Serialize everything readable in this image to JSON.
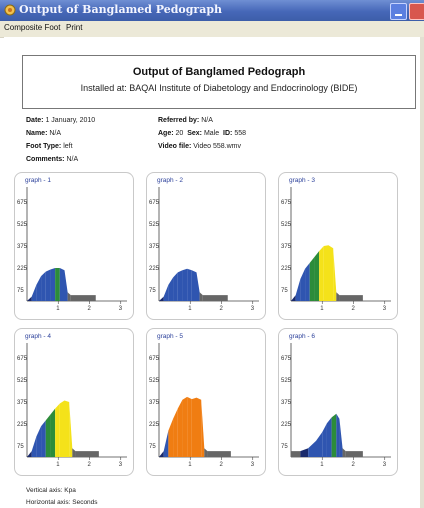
{
  "window": {
    "title": "Output of Banglamed Pedograph"
  },
  "menu": {
    "items": [
      "Composite Foot",
      "Print"
    ]
  },
  "report": {
    "title": "Output of Banglamed Pedograph",
    "installed_at": "Installed at: BAQAI Institute of Diabetology and Endocrinology (BIDE)",
    "date_label": "Date:",
    "date_value": "1 January, 2010",
    "name_label": "Name:",
    "name_value": "N/A",
    "foot_label": "Foot Type:",
    "foot_value": "left",
    "comments_label": "Comments:",
    "comments_value": "N/A",
    "referred_label": "Referred by:",
    "referred_value": "N/A",
    "age_label": "Age:",
    "age_value": "20",
    "sex_label": "Sex:",
    "sex_value": "Male",
    "id_label": "ID:",
    "id_value": "558",
    "video_label": "Video file:",
    "video_value": "Video 558.wmv",
    "vertical_axis": "Vertical axis:  Kpa",
    "horizontal_axis": "Horizontal axis:  Seconds"
  },
  "colors": {
    "titlebar": "#4667b8",
    "blue": "#2f55b0",
    "navy": "#1a2a6c",
    "green": "#2c8c3a",
    "yellow": "#f4e21a",
    "orange": "#f07d12",
    "gray": "#666666"
  },
  "chart_data": [
    {
      "type": "area",
      "title": "graph - 1",
      "yticks": [
        75,
        225,
        375,
        525,
        675
      ],
      "xticks": [
        1,
        2,
        3
      ],
      "ylim": [
        0,
        750
      ],
      "xlim": [
        0,
        3.2
      ],
      "x": [
        0,
        0.15,
        0.3,
        0.45,
        0.6,
        0.75,
        0.9,
        1.05,
        1.2,
        1.3,
        1.4,
        2.2
      ],
      "y": [
        0,
        30,
        110,
        170,
        200,
        215,
        225,
        225,
        210,
        60,
        40,
        40
      ],
      "fill_colors": [
        "navy",
        "blue",
        "blue",
        "blue",
        "blue",
        "blue",
        "green",
        "blue",
        "blue",
        "gray",
        "gray",
        "gray"
      ]
    },
    {
      "type": "area",
      "title": "graph - 2",
      "yticks": [
        75,
        225,
        375,
        525,
        675
      ],
      "xticks": [
        1,
        2,
        3
      ],
      "ylim": [
        0,
        750
      ],
      "xlim": [
        0,
        3.2
      ],
      "x": [
        0,
        0.15,
        0.3,
        0.45,
        0.6,
        0.75,
        0.9,
        1.05,
        1.2,
        1.3,
        1.4,
        2.2
      ],
      "y": [
        0,
        30,
        110,
        160,
        195,
        210,
        220,
        210,
        195,
        60,
        40,
        40
      ],
      "fill_colors": [
        "navy",
        "blue",
        "blue",
        "blue",
        "blue",
        "blue",
        "blue",
        "blue",
        "blue",
        "gray",
        "gray",
        "gray"
      ]
    },
    {
      "type": "area",
      "title": "graph - 3",
      "yticks": [
        75,
        225,
        375,
        525,
        675
      ],
      "xticks": [
        1,
        2,
        3
      ],
      "ylim": [
        0,
        750
      ],
      "xlim": [
        0,
        3.2
      ],
      "x": [
        0,
        0.15,
        0.3,
        0.45,
        0.6,
        0.75,
        0.9,
        1.05,
        1.2,
        1.35,
        1.45,
        1.55,
        2.3
      ],
      "y": [
        0,
        40,
        150,
        220,
        260,
        300,
        340,
        375,
        380,
        360,
        60,
        40,
        40
      ],
      "fill_colors": [
        "navy",
        "blue",
        "blue",
        "blue",
        "green",
        "green",
        "yellow",
        "yellow",
        "yellow",
        "yellow",
        "gray",
        "gray",
        "gray"
      ]
    },
    {
      "type": "area",
      "title": "graph - 4",
      "yticks": [
        75,
        225,
        375,
        525,
        675
      ],
      "xticks": [
        1,
        2,
        3
      ],
      "ylim": [
        0,
        750
      ],
      "xlim": [
        0,
        3.2
      ],
      "x": [
        0,
        0.15,
        0.3,
        0.45,
        0.6,
        0.75,
        0.9,
        1.05,
        1.2,
        1.35,
        1.45,
        1.55,
        2.3
      ],
      "y": [
        0,
        40,
        140,
        210,
        250,
        290,
        330,
        365,
        385,
        375,
        60,
        40,
        40
      ],
      "fill_colors": [
        "navy",
        "blue",
        "blue",
        "blue",
        "green",
        "green",
        "yellow",
        "yellow",
        "yellow",
        "yellow",
        "gray",
        "gray",
        "gray"
      ]
    },
    {
      "type": "area",
      "title": "graph - 5",
      "yticks": [
        75,
        225,
        375,
        525,
        675
      ],
      "xticks": [
        1,
        2,
        3
      ],
      "ylim": [
        0,
        750
      ],
      "xlim": [
        0,
        3.2
      ],
      "x": [
        0,
        0.15,
        0.3,
        0.45,
        0.6,
        0.75,
        0.9,
        1.05,
        1.2,
        1.35,
        1.45,
        1.55,
        2.3
      ],
      "y": [
        0,
        40,
        180,
        260,
        330,
        390,
        410,
        395,
        405,
        390,
        60,
        40,
        40
      ],
      "fill_colors": [
        "navy",
        "blue",
        "orange",
        "orange",
        "orange",
        "orange",
        "orange",
        "orange",
        "orange",
        "orange",
        "gray",
        "gray",
        "gray"
      ]
    },
    {
      "type": "area",
      "title": "graph - 6",
      "yticks": [
        75,
        225,
        375,
        525,
        675
      ],
      "xticks": [
        1,
        2,
        3
      ],
      "ylim": [
        0,
        750
      ],
      "xlim": [
        0,
        3.2
      ],
      "x": [
        0,
        0.3,
        0.55,
        0.8,
        1.0,
        1.15,
        1.3,
        1.45,
        1.55,
        1.65,
        1.75,
        2.3
      ],
      "y": [
        40,
        40,
        60,
        110,
        170,
        230,
        270,
        295,
        260,
        60,
        40,
        40
      ],
      "fill_colors": [
        "gray",
        "navy",
        "blue",
        "blue",
        "blue",
        "blue",
        "green",
        "blue",
        "blue",
        "gray",
        "gray",
        "gray"
      ]
    }
  ]
}
